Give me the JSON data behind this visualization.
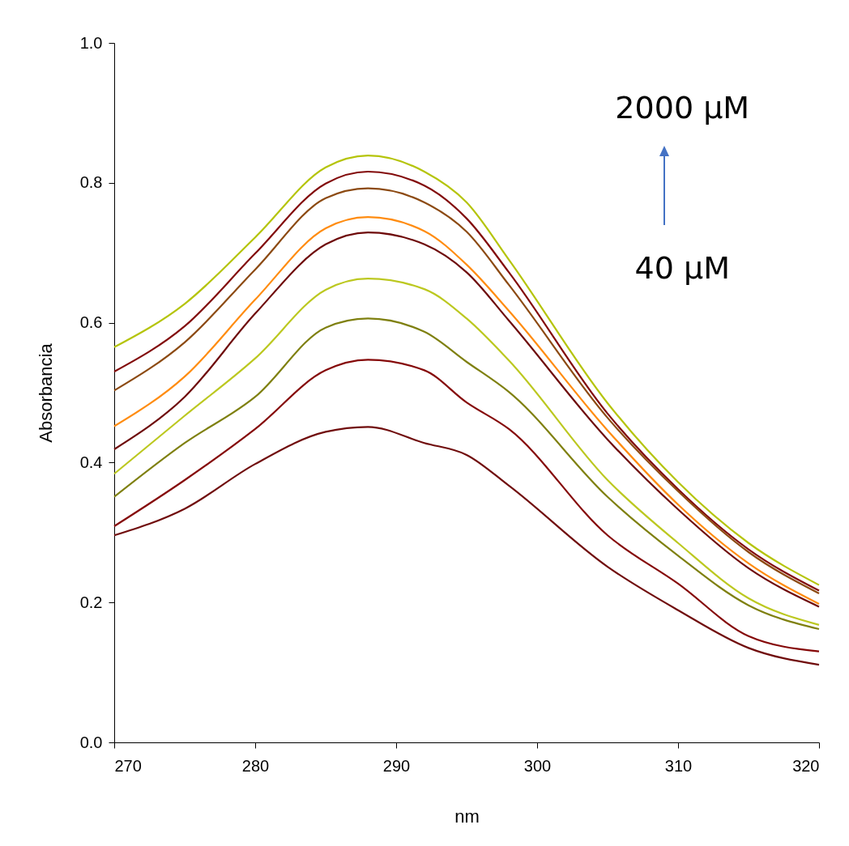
{
  "chart_data": {
    "type": "line",
    "xlabel": "nm",
    "ylabel": "Absorbancia",
    "x": [
      270,
      275,
      280,
      285,
      288,
      292,
      295,
      298,
      305,
      310,
      315,
      320
    ],
    "series": [
      {
        "color": "#b5c40a",
        "values": [
          0.565,
          0.627,
          0.722,
          0.822,
          0.839,
          0.816,
          0.772,
          0.69,
          0.485,
          0.372,
          0.285,
          0.225
        ]
      },
      {
        "color": "#820a0a",
        "values": [
          0.53,
          0.595,
          0.699,
          0.799,
          0.816,
          0.796,
          0.749,
          0.672,
          0.47,
          0.362,
          0.276,
          0.217
        ]
      },
      {
        "color": "#8c4a12",
        "values": [
          0.503,
          0.572,
          0.676,
          0.778,
          0.792,
          0.772,
          0.73,
          0.654,
          0.464,
          0.359,
          0.272,
          0.213
        ]
      },
      {
        "color": "#ff8c10",
        "values": [
          0.452,
          0.523,
          0.633,
          0.735,
          0.751,
          0.731,
          0.683,
          0.617,
          0.446,
          0.34,
          0.256,
          0.198
        ]
      },
      {
        "color": "#6e0a0a",
        "values": [
          0.419,
          0.494,
          0.613,
          0.712,
          0.729,
          0.712,
          0.672,
          0.603,
          0.433,
          0.333,
          0.249,
          0.194
        ]
      },
      {
        "color": "#bcc820",
        "values": [
          0.384,
          0.467,
          0.549,
          0.647,
          0.663,
          0.648,
          0.606,
          0.546,
          0.375,
          0.285,
          0.206,
          0.168
        ]
      },
      {
        "color": "#7f8010",
        "values": [
          0.351,
          0.428,
          0.494,
          0.593,
          0.606,
          0.587,
          0.544,
          0.501,
          0.351,
          0.267,
          0.196,
          0.162
        ]
      },
      {
        "color": "#850808",
        "values": [
          0.309,
          0.375,
          0.448,
          0.532,
          0.547,
          0.532,
          0.486,
          0.448,
          0.296,
          0.227,
          0.152,
          0.13
        ]
      },
      {
        "color": "#700c0c",
        "values": [
          0.296,
          0.334,
          0.398,
          0.444,
          0.451,
          0.428,
          0.411,
          0.367,
          0.251,
          0.189,
          0.135,
          0.111
        ]
      }
    ],
    "xlim": [
      270,
      320
    ],
    "xticks": [
      270,
      280,
      290,
      300,
      310,
      320
    ],
    "ylim": [
      0,
      1
    ],
    "yticks": [
      {
        "value": 0,
        "label": "0.0"
      },
      {
        "value": 0.2,
        "label": "0.2"
      },
      {
        "value": 0.4,
        "label": "0.4"
      },
      {
        "value": 0.6,
        "label": "0.6"
      },
      {
        "value": 0.8,
        "label": "0.8"
      },
      {
        "value": 1,
        "label": "1.0"
      }
    ],
    "grid": false,
    "legend": false,
    "marker": "none",
    "line_style": "solid",
    "annotations": [
      "2000 µM",
      "40 µM"
    ]
  }
}
